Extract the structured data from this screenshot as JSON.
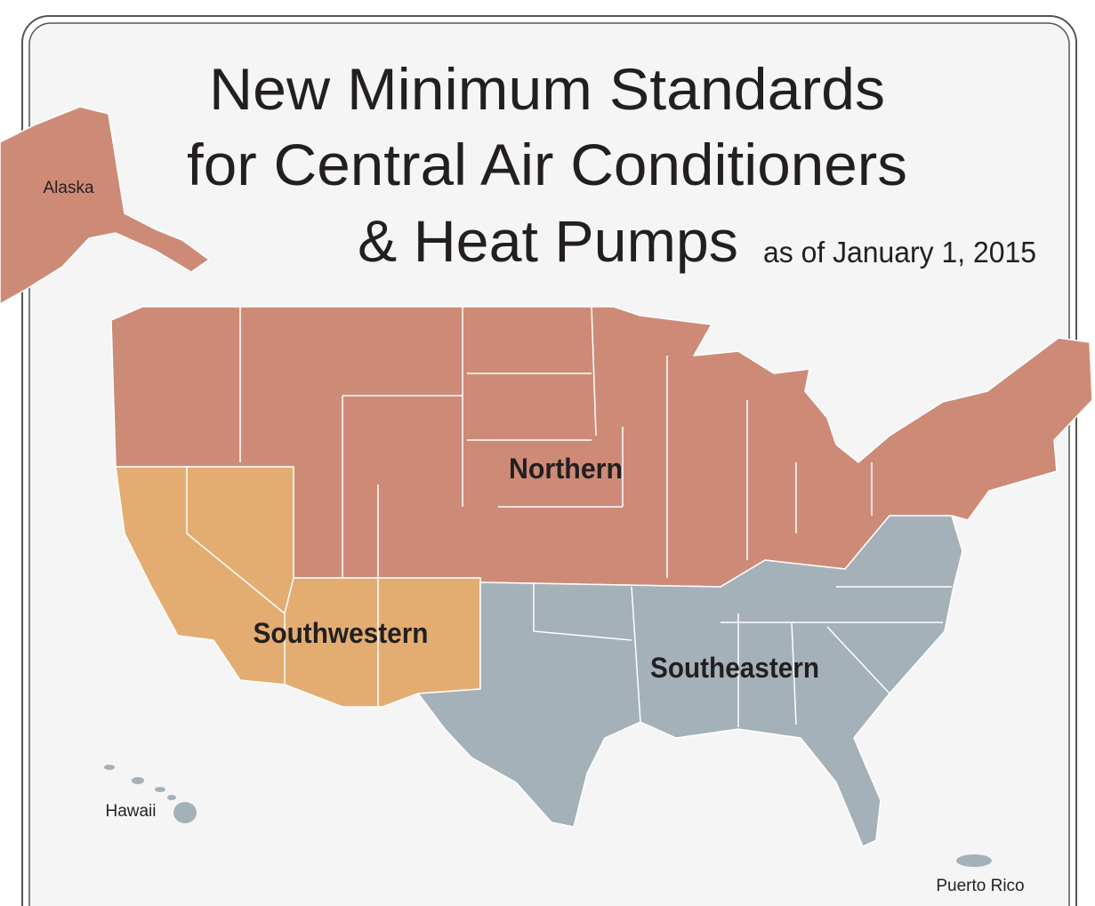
{
  "header": {
    "title_lines": [
      "New Minimum Standards",
      "for Central Air Conditioners",
      "& Heat Pumps"
    ],
    "date": "as of January 1, 2015"
  },
  "regions": [
    {
      "label": "Northern"
    },
    {
      "label": "Southwestern"
    },
    {
      "label": "Southeastern"
    }
  ],
  "places": [
    "Alaska",
    "Hawaii",
    "Puerto Rico"
  ]
}
